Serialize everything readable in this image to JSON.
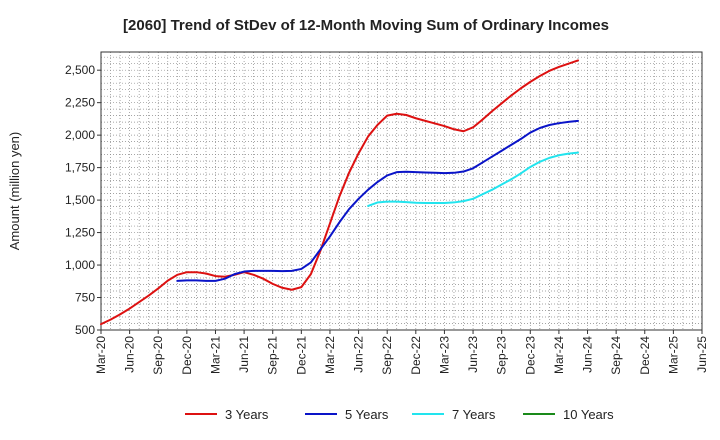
{
  "chart_data": {
    "type": "line",
    "title": "[2060]  Trend of StDev of 12-Month Moving Sum of Ordinary Incomes",
    "xlabel": "",
    "ylabel": "Amount (million yen)",
    "ylim": [
      500,
      2640
    ],
    "yticks": [
      500,
      750,
      1000,
      1250,
      1500,
      1750,
      2000,
      2250,
      2500
    ],
    "ytick_labels": [
      "500",
      "750",
      "1,000",
      "1,250",
      "1,500",
      "1,750",
      "2,000",
      "2,250",
      "2,500"
    ],
    "x_tick_labels": [
      "Mar-20",
      "Jun-20",
      "Sep-20",
      "Dec-20",
      "Mar-21",
      "Jun-21",
      "Sep-21",
      "Dec-21",
      "Mar-22",
      "Jun-22",
      "Sep-22",
      "Dec-22",
      "Mar-23",
      "Jun-23",
      "Sep-23",
      "Dec-23",
      "Mar-24",
      "Jun-24",
      "Sep-24",
      "Dec-24",
      "Mar-25",
      "Jun-25"
    ],
    "grid": true,
    "legend_position": "bottom",
    "series": [
      {
        "name": "3 Years",
        "color": "#dd1111",
        "points": [
          [
            0,
            545
          ],
          [
            1,
            580
          ],
          [
            2,
            620
          ],
          [
            3,
            665
          ],
          [
            4,
            715
          ],
          [
            5,
            765
          ],
          [
            6,
            820
          ],
          [
            7,
            880
          ],
          [
            8,
            925
          ],
          [
            9,
            945
          ],
          [
            10,
            945
          ],
          [
            11,
            935
          ],
          [
            12,
            915
          ],
          [
            13,
            910
          ],
          [
            14,
            925
          ],
          [
            15,
            945
          ],
          [
            16,
            925
          ],
          [
            17,
            895
          ],
          [
            18,
            855
          ],
          [
            19,
            825
          ],
          [
            20,
            810
          ],
          [
            21,
            830
          ],
          [
            22,
            930
          ],
          [
            23,
            1110
          ],
          [
            24,
            1320
          ],
          [
            25,
            1530
          ],
          [
            26,
            1710
          ],
          [
            27,
            1860
          ],
          [
            28,
            1990
          ],
          [
            29,
            2080
          ],
          [
            30,
            2150
          ],
          [
            31,
            2165
          ],
          [
            32,
            2155
          ],
          [
            33,
            2130
          ],
          [
            34,
            2110
          ],
          [
            35,
            2090
          ],
          [
            36,
            2070
          ],
          [
            37,
            2045
          ],
          [
            38,
            2030
          ],
          [
            39,
            2060
          ],
          [
            40,
            2120
          ],
          [
            41,
            2185
          ],
          [
            42,
            2245
          ],
          [
            43,
            2305
          ],
          [
            44,
            2360
          ],
          [
            45,
            2410
          ],
          [
            46,
            2455
          ],
          [
            47,
            2495
          ],
          [
            48,
            2525
          ],
          [
            49,
            2550
          ],
          [
            50,
            2575
          ]
        ]
      },
      {
        "name": "5 Years",
        "color": "#0a14c8",
        "points": [
          [
            8,
            878
          ],
          [
            9,
            882
          ],
          [
            10,
            882
          ],
          [
            11,
            878
          ],
          [
            12,
            878
          ],
          [
            13,
            895
          ],
          [
            14,
            930
          ],
          [
            15,
            950
          ],
          [
            16,
            955
          ],
          [
            17,
            955
          ],
          [
            18,
            955
          ],
          [
            19,
            953
          ],
          [
            20,
            955
          ],
          [
            21,
            970
          ],
          [
            22,
            1020
          ],
          [
            23,
            1120
          ],
          [
            24,
            1220
          ],
          [
            25,
            1330
          ],
          [
            26,
            1430
          ],
          [
            27,
            1510
          ],
          [
            28,
            1580
          ],
          [
            29,
            1640
          ],
          [
            30,
            1690
          ],
          [
            31,
            1715
          ],
          [
            32,
            1718
          ],
          [
            33,
            1715
          ],
          [
            34,
            1712
          ],
          [
            35,
            1710
          ],
          [
            36,
            1708
          ],
          [
            37,
            1710
          ],
          [
            38,
            1720
          ],
          [
            39,
            1745
          ],
          [
            40,
            1790
          ],
          [
            41,
            1835
          ],
          [
            42,
            1880
          ],
          [
            43,
            1925
          ],
          [
            44,
            1970
          ],
          [
            45,
            2020
          ],
          [
            46,
            2055
          ],
          [
            47,
            2078
          ],
          [
            48,
            2092
          ],
          [
            49,
            2102
          ],
          [
            50,
            2110
          ]
        ]
      },
      {
        "name": "7 Years",
        "color": "#22e4ee",
        "points": [
          [
            28,
            1455
          ],
          [
            29,
            1482
          ],
          [
            30,
            1488
          ],
          [
            31,
            1488
          ],
          [
            32,
            1484
          ],
          [
            33,
            1480
          ],
          [
            34,
            1478
          ],
          [
            35,
            1478
          ],
          [
            36,
            1478
          ],
          [
            37,
            1482
          ],
          [
            38,
            1492
          ],
          [
            39,
            1510
          ],
          [
            40,
            1545
          ],
          [
            41,
            1580
          ],
          [
            42,
            1620
          ],
          [
            43,
            1660
          ],
          [
            44,
            1705
          ],
          [
            45,
            1755
          ],
          [
            46,
            1795
          ],
          [
            47,
            1825
          ],
          [
            48,
            1845
          ],
          [
            49,
            1858
          ],
          [
            50,
            1865
          ]
        ]
      },
      {
        "name": "10 Years",
        "color": "#1a8a1a",
        "points": []
      }
    ]
  }
}
